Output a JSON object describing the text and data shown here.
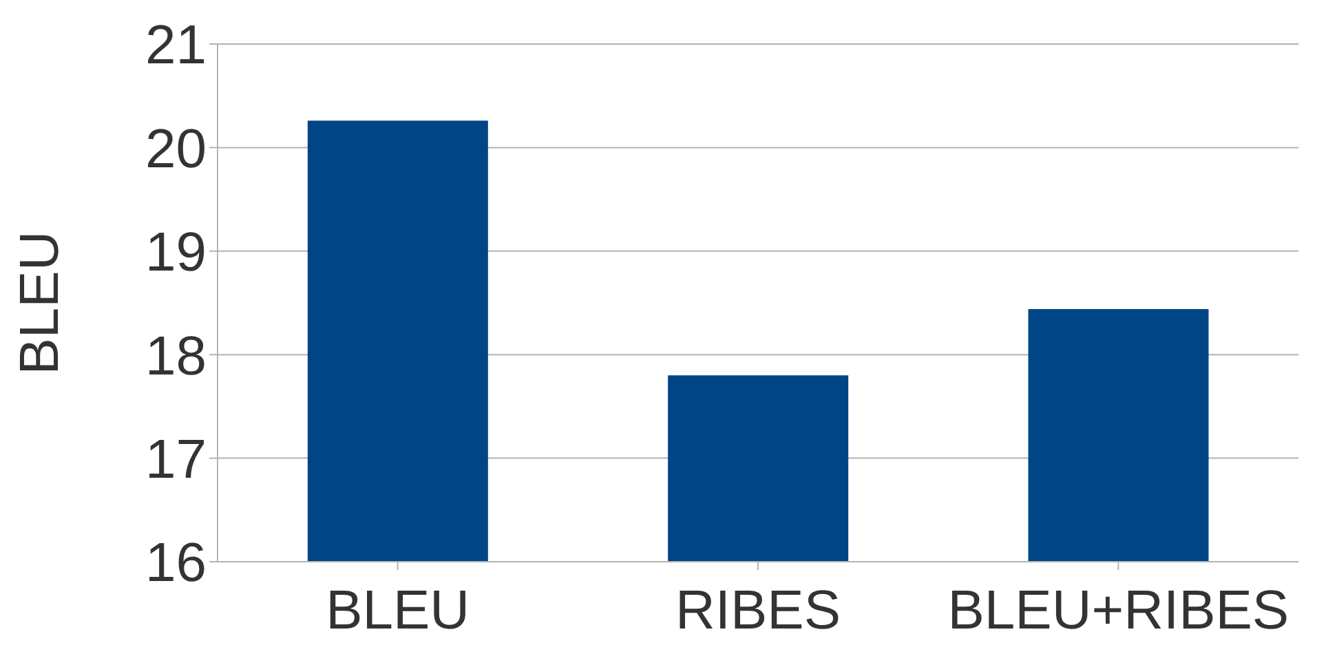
{
  "chart_data": {
    "type": "bar",
    "ylabel": "BLEU",
    "categories": [
      "BLEU",
      "RIBES",
      "BLEU+RIBES"
    ],
    "values": [
      20.26,
      17.8,
      18.44
    ],
    "color": "#004586",
    "ylim": [
      16,
      21
    ],
    "yticks": [
      16,
      17,
      18,
      19,
      20,
      21
    ],
    "grid": "y"
  }
}
